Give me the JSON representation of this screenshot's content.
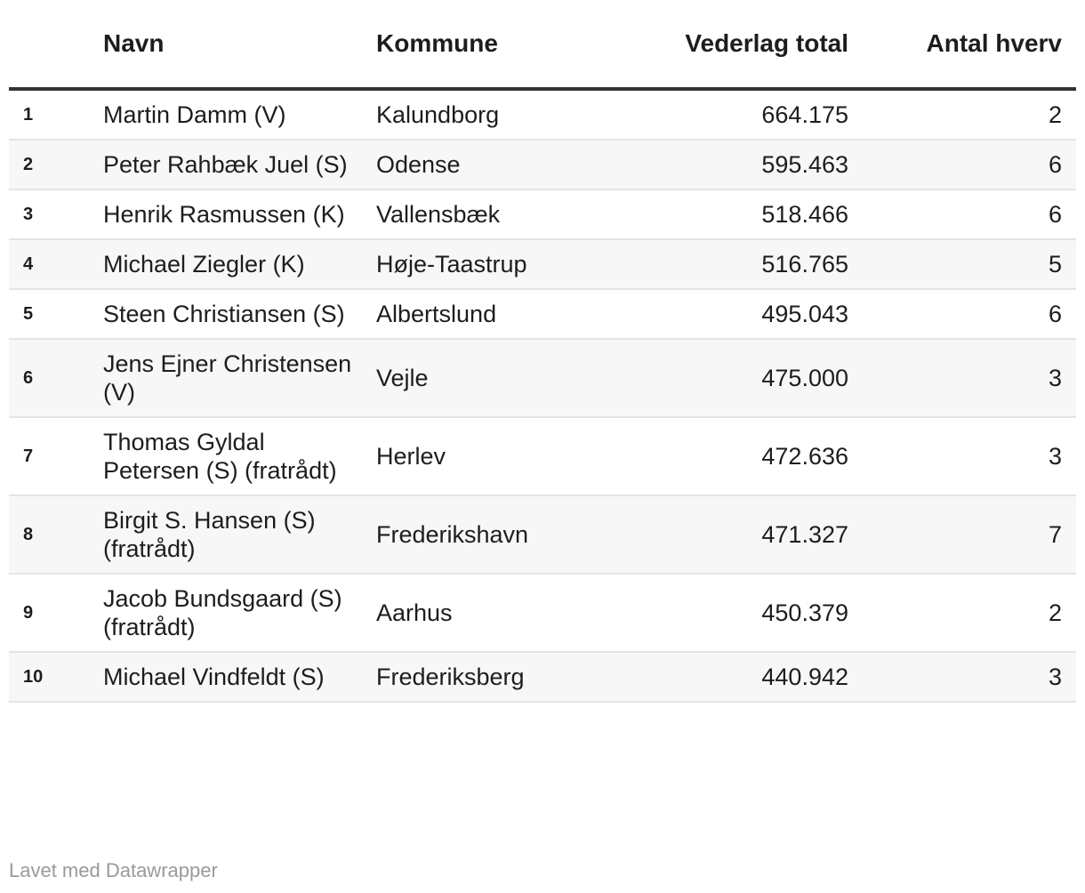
{
  "chart_data": {
    "type": "table",
    "columns": [
      "",
      "Navn",
      "Kommune",
      "Vederlag total",
      "Antal hverv"
    ],
    "rows": [
      {
        "rank": "1",
        "navn": "Martin Damm (V)",
        "kommune": "Kalundborg",
        "vederlag": "664.175",
        "hverv": "2"
      },
      {
        "rank": "2",
        "navn": "Peter Rahbæk Juel (S)",
        "kommune": "Odense",
        "vederlag": "595.463",
        "hverv": "6"
      },
      {
        "rank": "3",
        "navn": "Henrik Rasmussen (K)",
        "kommune": "Vallensbæk",
        "vederlag": "518.466",
        "hverv": "6"
      },
      {
        "rank": "4",
        "navn": "Michael Ziegler (K)",
        "kommune": "Høje-Taastrup",
        "vederlag": "516.765",
        "hverv": "5"
      },
      {
        "rank": "5",
        "navn": "Steen Christiansen (S)",
        "kommune": "Albertslund",
        "vederlag": "495.043",
        "hverv": "6"
      },
      {
        "rank": "6",
        "navn": "Jens Ejner Christensen (V)",
        "kommune": "Vejle",
        "vederlag": "475.000",
        "hverv": "3"
      },
      {
        "rank": "7",
        "navn": "Thomas Gyldal Petersen (S) (fratrådt)",
        "kommune": "Herlev",
        "vederlag": "472.636",
        "hverv": "3"
      },
      {
        "rank": "8",
        "navn": "Birgit S. Hansen (S) (fratrådt)",
        "kommune": "Frederikshavn",
        "vederlag": "471.327",
        "hverv": "7"
      },
      {
        "rank": "9",
        "navn": "Jacob Bundsgaard (S) (fratrådt)",
        "kommune": "Aarhus",
        "vederlag": "450.379",
        "hverv": "2"
      },
      {
        "rank": "10",
        "navn": "Michael Vindfeldt (S)",
        "kommune": "Frederiksberg",
        "vederlag": "440.942",
        "hverv": "3"
      }
    ]
  },
  "footer": "Lavet med Datawrapper",
  "colors": {
    "text": "#1d1d1d",
    "header_rule": "#333333",
    "row_rule": "#e4e4e4",
    "row_stripe": "#f7f7f7",
    "footer_text": "#9a9a9a"
  }
}
